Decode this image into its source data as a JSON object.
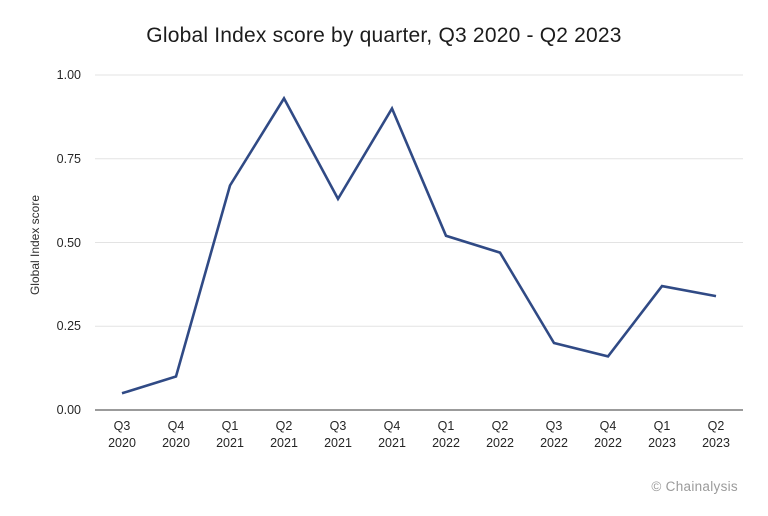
{
  "title": "Global Index score by quarter, Q3 2020 - Q2 2023",
  "footer": {
    "credit": "© Chainalysis"
  },
  "colors": {
    "line": "#304a85",
    "gridline": "#e3e3e3",
    "axis_line": "#9b9b9b",
    "text": "#262626",
    "credit_text": "#9b9b9b",
    "background": "#ffffff"
  },
  "chart_data": {
    "type": "line",
    "title": "Global Index score by quarter, Q3 2020 - Q2 2023",
    "xlabel": "",
    "ylabel": "Global Index score",
    "categories": [
      "Q3 2020",
      "Q4 2020",
      "Q1 2021",
      "Q2 2021",
      "Q3 2021",
      "Q4 2021",
      "Q1 2022",
      "Q2 2022",
      "Q3 2022",
      "Q4 2022",
      "Q1 2023",
      "Q2 2023"
    ],
    "values": [
      0.05,
      0.1,
      0.67,
      0.93,
      0.63,
      0.9,
      0.52,
      0.47,
      0.2,
      0.16,
      0.37,
      0.34
    ],
    "ylim": [
      0,
      1
    ],
    "yticks": [
      0,
      0.25,
      0.5,
      0.75,
      1
    ],
    "ytick_labels": [
      "0.00",
      "0.25",
      "0.50",
      "0.75",
      "1.00"
    ],
    "grid": "horizontal",
    "legend": "none",
    "annotation": "© Chainalysis"
  }
}
